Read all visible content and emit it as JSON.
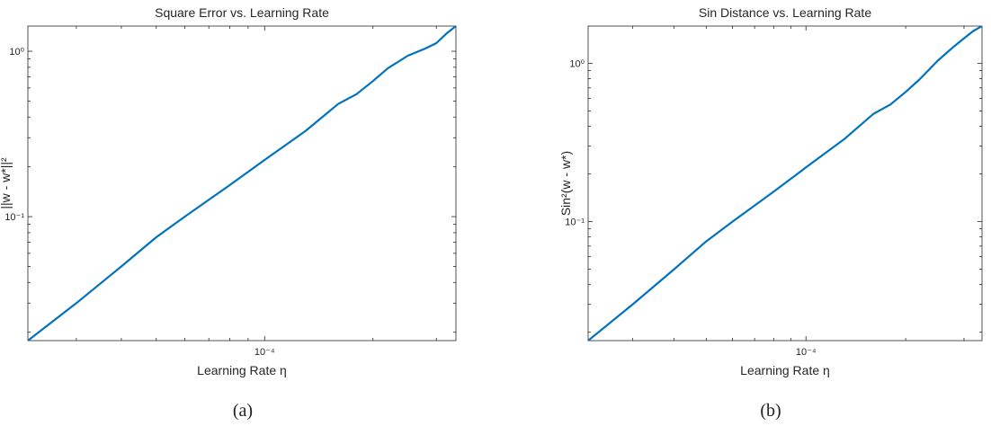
{
  "chart_data": [
    {
      "type": "line",
      "caption": "(a)",
      "title": "Square Error vs. Learning Rate",
      "xlabel": "Learning Rate η",
      "ylabel": "||w - w*||²",
      "xscale": "log",
      "yscale": "log",
      "xlim": [
        2.2e-05,
        0.00034
      ],
      "ylim": [
        0.0178,
        1.42
      ],
      "grid": false,
      "x_ticks": [
        {
          "value": 0.0001,
          "label": "10⁻⁴"
        }
      ],
      "y_ticks": [
        {
          "value": 0.1,
          "label": "10⁻¹"
        },
        {
          "value": 1,
          "label": "10⁰"
        }
      ],
      "series": [
        {
          "color": "#0072BD",
          "x": [
            2.2e-05,
            3e-05,
            4e-05,
            5e-05,
            6e-05,
            8e-05,
            0.0001,
            0.00013,
            0.00016,
            0.00018,
            0.0002,
            0.00022,
            0.00025,
            0.00028,
            0.0003,
            0.00032,
            0.00034
          ],
          "y": [
            0.0178,
            0.03,
            0.05,
            0.075,
            0.1,
            0.155,
            0.22,
            0.33,
            0.48,
            0.55,
            0.66,
            0.79,
            0.94,
            1.04,
            1.12,
            1.28,
            1.42
          ]
        }
      ]
    },
    {
      "type": "line",
      "caption": "(b)",
      "title": "Sin Distance vs. Learning Rate",
      "xlabel": "Learning Rate η",
      "ylabel": "Sin²(w - w*)",
      "xscale": "log",
      "yscale": "log",
      "xlim": [
        2.2e-05,
        0.00034
      ],
      "ylim": [
        0.0177,
        1.72
      ],
      "grid": false,
      "x_ticks": [
        {
          "value": 0.0001,
          "label": "10⁻⁴"
        }
      ],
      "y_ticks": [
        {
          "value": 0.1,
          "label": "10⁻¹"
        },
        {
          "value": 1,
          "label": "10⁰"
        }
      ],
      "series": [
        {
          "color": "#0072BD",
          "x": [
            2.2e-05,
            3e-05,
            4e-05,
            5e-05,
            6e-05,
            8e-05,
            0.0001,
            0.00013,
            0.00016,
            0.00018,
            0.0002,
            0.00022,
            0.00025,
            0.00028,
            0.0003,
            0.00032,
            0.00034
          ],
          "y": [
            0.0177,
            0.03,
            0.05,
            0.075,
            0.1,
            0.155,
            0.22,
            0.33,
            0.48,
            0.55,
            0.66,
            0.79,
            1.04,
            1.28,
            1.44,
            1.6,
            1.72
          ]
        }
      ]
    }
  ]
}
